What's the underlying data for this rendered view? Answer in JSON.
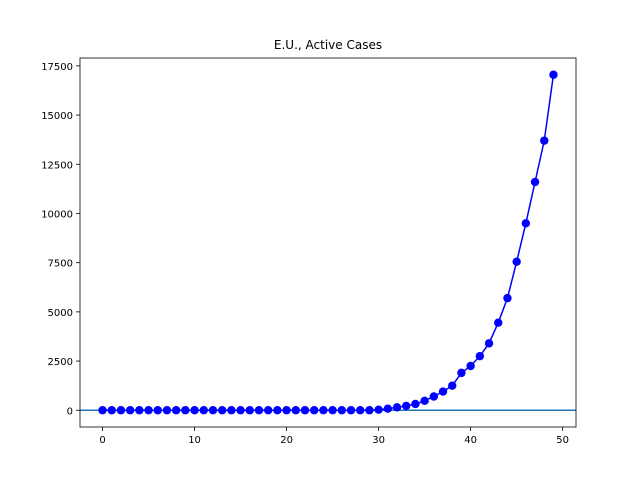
{
  "chart_data": {
    "type": "line",
    "title": "E.U., Active Cases",
    "xlabel": "",
    "ylabel": "",
    "xlim": [
      -2.45,
      51.45
    ],
    "ylim": [
      -850,
      17900
    ],
    "xticks": [
      0,
      10,
      20,
      30,
      40,
      50
    ],
    "yticks": [
      0,
      2500,
      5000,
      7500,
      10000,
      12500,
      15000,
      17500
    ],
    "grid": false,
    "legend": "none",
    "series": [
      {
        "color": "#0000ff",
        "marker": "circle",
        "x": [
          0,
          1,
          2,
          3,
          4,
          5,
          6,
          7,
          8,
          9,
          10,
          11,
          12,
          13,
          14,
          15,
          16,
          17,
          18,
          19,
          20,
          21,
          22,
          23,
          24,
          25,
          26,
          27,
          28,
          29,
          30,
          31,
          32,
          33,
          34,
          35,
          36,
          37,
          38,
          39,
          40,
          41,
          42,
          43,
          44,
          45,
          46,
          47,
          48,
          49
        ],
        "values": [
          2,
          2,
          2,
          2,
          2,
          2,
          2,
          2,
          2,
          2,
          2,
          2,
          2,
          2,
          2,
          2,
          2,
          2,
          2,
          2,
          2,
          2,
          2,
          2,
          2,
          2,
          2,
          2,
          2,
          2,
          30,
          80,
          150,
          220,
          320,
          480,
          700,
          950,
          1250,
          1900,
          2250,
          2750,
          3400,
          4450,
          5700,
          7550,
          9500,
          11600,
          13700,
          17050
        ]
      }
    ],
    "reference_lines": [
      {
        "orientation": "horizontal",
        "y": 0,
        "color": "#1f77b4"
      }
    ]
  }
}
